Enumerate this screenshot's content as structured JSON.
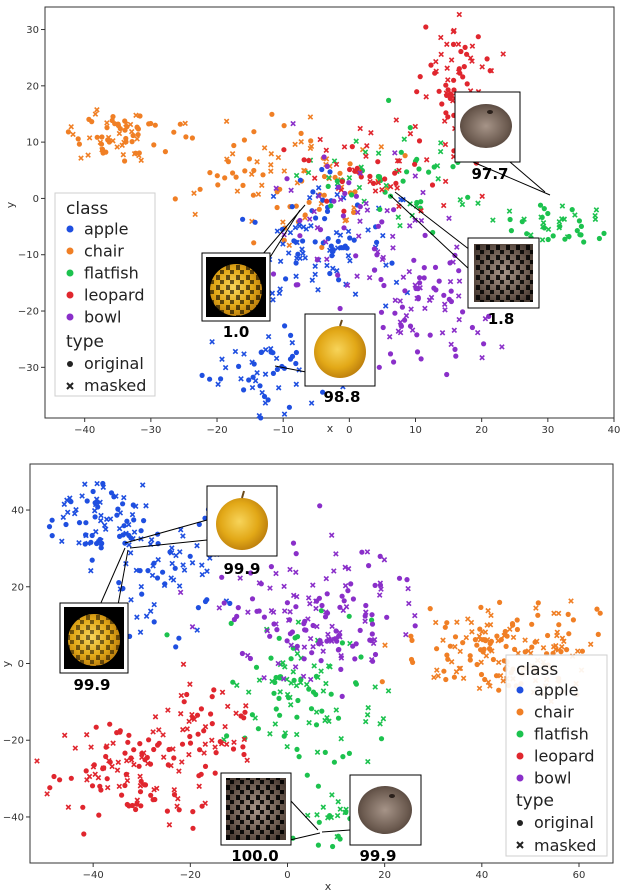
{
  "chart_data": [
    {
      "type": "scatter",
      "xlabel": "x",
      "ylabel": "y",
      "xlim": [
        -46,
        40
      ],
      "ylim": [
        -39,
        34
      ],
      "xticks": [
        -40,
        -30,
        -20,
        -10,
        0,
        10,
        20,
        30,
        40
      ],
      "yticks": [
        -30,
        -20,
        -10,
        0,
        10,
        20,
        30
      ],
      "grid": false,
      "legend_position": "left",
      "legend": {
        "class_title": "class",
        "classes": [
          "apple",
          "chair",
          "flatfish",
          "leopard",
          "bowl"
        ],
        "type_title": "type",
        "types": [
          "original",
          "masked"
        ]
      },
      "colors": {
        "apple": "#1f4fe0",
        "chair": "#f07f25",
        "flatfish": "#1cc24e",
        "leopard": "#e0262e",
        "bowl": "#8a2fc9"
      },
      "clusters": [
        {
          "class": "chair",
          "cx": -34,
          "cy": 11,
          "sx": 4,
          "sy": 2,
          "n": 70,
          "seed": 1
        },
        {
          "class": "chair",
          "cx": -10,
          "cy": 3,
          "sx": 7,
          "sy": 6,
          "n": 90,
          "seed": 2
        },
        {
          "class": "apple",
          "cx": -3,
          "cy": -7,
          "sx": 6,
          "sy": 6,
          "n": 100,
          "seed": 3
        },
        {
          "class": "apple",
          "cx": -12,
          "cy": -30,
          "sx": 4,
          "sy": 4,
          "n": 60,
          "seed": 4
        },
        {
          "class": "flatfish",
          "cx": 5,
          "cy": 4,
          "sx": 8,
          "sy": 5,
          "n": 60,
          "seed": 5
        },
        {
          "class": "flatfish",
          "cx": 32,
          "cy": -5,
          "sx": 4,
          "sy": 2,
          "n": 45,
          "seed": 6
        },
        {
          "class": "leopard",
          "cx": 17,
          "cy": 20,
          "sx": 3,
          "sy": 6,
          "n": 80,
          "seed": 7
        },
        {
          "class": "leopard",
          "cx": 3,
          "cy": 5,
          "sx": 6,
          "sy": 4,
          "n": 50,
          "seed": 8
        },
        {
          "class": "bowl",
          "cx": 12,
          "cy": -18,
          "sx": 6,
          "sy": 5,
          "n": 100,
          "seed": 9
        },
        {
          "class": "bowl",
          "cx": 0,
          "cy": -5,
          "sx": 6,
          "sy": 6,
          "n": 50,
          "seed": 10
        }
      ],
      "annotations": [
        {
          "label": "97.7",
          "image": "flatfish-original"
        },
        {
          "label": "1.8",
          "image": "flatfish-masked"
        },
        {
          "label": "1.0",
          "image": "apple-masked"
        },
        {
          "label": "98.8",
          "image": "apple-original"
        }
      ]
    },
    {
      "type": "scatter",
      "xlabel": "x",
      "ylabel": "y",
      "xlim": [
        -53,
        67
      ],
      "ylim": [
        -52,
        52
      ],
      "xticks": [
        -40,
        -20,
        0,
        20,
        40,
        60
      ],
      "yticks": [
        -40,
        -20,
        0,
        20,
        40
      ],
      "grid": false,
      "legend_position": "right",
      "legend": {
        "class_title": "class",
        "classes": [
          "apple",
          "chair",
          "flatfish",
          "leopard",
          "bowl"
        ],
        "type_title": "type",
        "types": [
          "original",
          "masked"
        ]
      },
      "colors": {
        "apple": "#1f4fe0",
        "chair": "#f07f25",
        "flatfish": "#1cc24e",
        "leopard": "#e0262e",
        "bowl": "#8a2fc9"
      },
      "clusters": [
        {
          "class": "apple",
          "cx": -38,
          "cy": 37,
          "sx": 6,
          "sy": 5,
          "n": 80,
          "seed": 11
        },
        {
          "class": "apple",
          "cx": -25,
          "cy": 25,
          "sx": 7,
          "sy": 7,
          "n": 70,
          "seed": 12
        },
        {
          "class": "chair",
          "cx": 45,
          "cy": 3,
          "sx": 10,
          "sy": 6,
          "n": 170,
          "seed": 13
        },
        {
          "class": "flatfish",
          "cx": 3,
          "cy": -10,
          "sx": 8,
          "sy": 10,
          "n": 110,
          "seed": 14
        },
        {
          "class": "flatfish",
          "cx": 8,
          "cy": -38,
          "sx": 5,
          "sy": 4,
          "n": 30,
          "seed": 15
        },
        {
          "class": "leopard",
          "cx": -30,
          "cy": -28,
          "sx": 9,
          "sy": 6,
          "n": 130,
          "seed": 16
        },
        {
          "class": "leopard",
          "cx": -15,
          "cy": -15,
          "sx": 5,
          "sy": 5,
          "n": 40,
          "seed": 17
        },
        {
          "class": "bowl",
          "cx": 6,
          "cy": 14,
          "sx": 10,
          "sy": 9,
          "n": 160,
          "seed": 18
        }
      ],
      "annotations": [
        {
          "label": "99.9",
          "image": "apple-original"
        },
        {
          "label": "99.9",
          "image": "apple-masked"
        },
        {
          "label": "100.0",
          "image": "flatfish-masked"
        },
        {
          "label": "99.9",
          "image": "flatfish-original"
        }
      ]
    }
  ]
}
